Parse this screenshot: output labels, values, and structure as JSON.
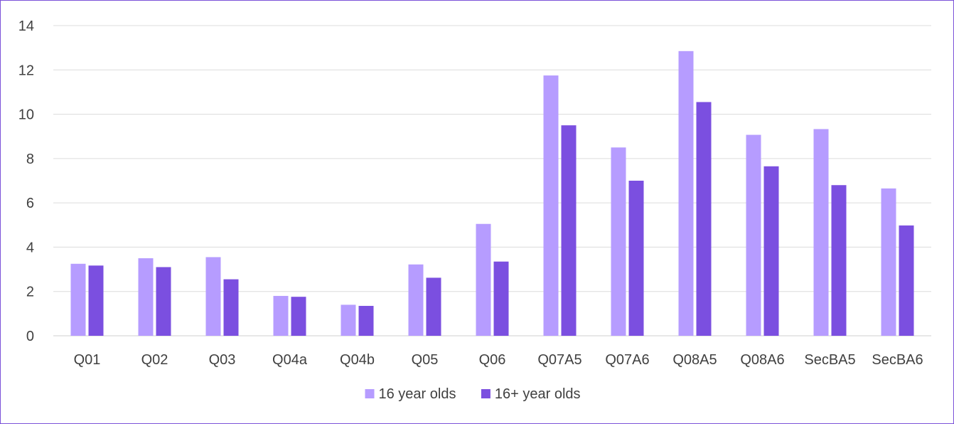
{
  "chart_data": {
    "type": "bar",
    "categories": [
      "Q01",
      "Q02",
      "Q03",
      "Q04a",
      "Q04b",
      "Q05",
      "Q06",
      "Q07A5",
      "Q07A6",
      "Q08A5",
      "Q08A6",
      "SecBA5",
      "SecBA6"
    ],
    "series": [
      {
        "name": "16 year olds",
        "color": "#b69cff",
        "values": [
          3.25,
          3.5,
          3.55,
          1.8,
          1.4,
          3.22,
          5.05,
          11.75,
          8.5,
          12.85,
          9.07,
          9.33,
          6.65
        ]
      },
      {
        "name": "16+ year olds",
        "color": "#7b4fe0",
        "values": [
          3.17,
          3.1,
          2.55,
          1.76,
          1.35,
          2.62,
          3.35,
          9.5,
          7.0,
          10.55,
          7.65,
          6.8,
          4.98
        ]
      }
    ],
    "yticks": [
      0,
      2,
      4,
      6,
      8,
      10,
      12,
      14
    ],
    "ylim": [
      0,
      14
    ],
    "grid": true,
    "legend_position": "bottom-center",
    "title": "",
    "xlabel": "",
    "ylabel": ""
  }
}
